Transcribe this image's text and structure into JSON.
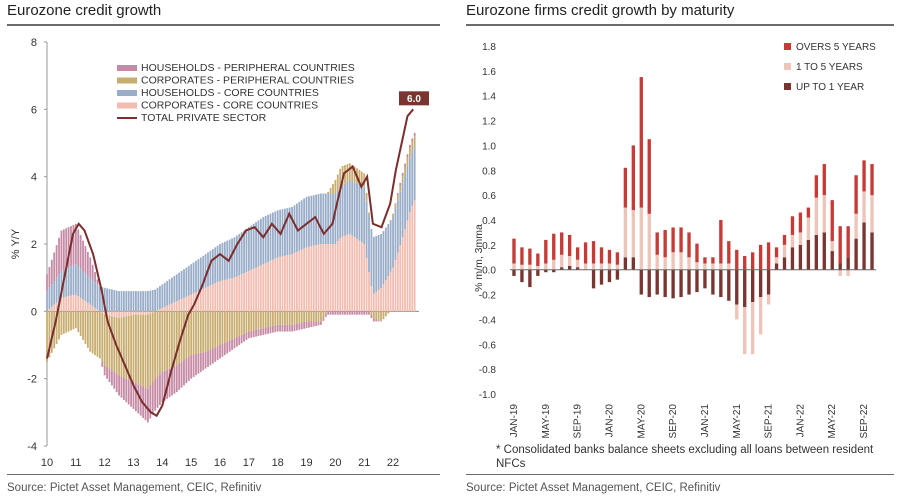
{
  "left_panel": {
    "title": "Eurozone credit growth",
    "source": "Source: Pictet Asset Management, CEIC, Refinitiv"
  },
  "right_panel": {
    "title": "Eurozone firms credit growth by maturity",
    "source": "Source: Pictet Asset Management, CEIC, Refinitiv",
    "note": "* Consolidated  banks balance sheets  excluding  all loans between resident NFCs"
  },
  "chart_data": [
    {
      "type": "bar",
      "stacked": true,
      "title": "Eurozone credit growth",
      "ylabel": "% Y/Y",
      "xlabel": "",
      "ylim": [
        -4,
        8
      ],
      "yticks": [
        -4,
        -2,
        0,
        2,
        4,
        6,
        8
      ],
      "xlim": [
        2010,
        2022.9
      ],
      "xticks": [
        "10",
        "11",
        "12",
        "13",
        "14",
        "15",
        "16",
        "17",
        "18",
        "19",
        "20",
        "21",
        "22"
      ],
      "legend_position": "top-center",
      "end_label": "6.0",
      "anchors_x": [
        2010,
        2010.5,
        2011,
        2011.5,
        2012,
        2012.5,
        2013,
        2013.5,
        2014,
        2014.5,
        2015,
        2015.5,
        2016,
        2016.5,
        2017,
        2017.5,
        2018,
        2018.5,
        2019,
        2019.5,
        2020,
        2020.2,
        2020.5,
        2021,
        2021.3,
        2021.6,
        2022,
        2022.3,
        2022.6,
        2022.75
      ],
      "series": [
        {
          "name": "HOUSEHOLDS - PERIPHERAL COUNTRIES",
          "color": "#c58aa5",
          "values": [
            0.5,
            1.2,
            1.2,
            0.6,
            -0.3,
            -0.6,
            -0.8,
            -1.0,
            -0.9,
            -0.8,
            -0.7,
            -0.5,
            -0.4,
            -0.3,
            -0.2,
            -0.2,
            -0.2,
            -0.2,
            -0.2,
            -0.1,
            -0.1,
            -0.1,
            -0.1,
            -0.1,
            -0.1,
            0.0,
            0.0,
            0.1,
            0.1,
            0.1
          ]
        },
        {
          "name": "CORPORATES - PERIPHERAL COUNTRIES",
          "color": "#c8ad70",
          "values": [
            -1.5,
            -0.7,
            -0.5,
            -1.2,
            -1.5,
            -1.7,
            -2.0,
            -2.2,
            -1.8,
            -1.6,
            -1.3,
            -1.2,
            -1.0,
            -0.8,
            -0.6,
            -0.5,
            -0.4,
            -0.4,
            -0.3,
            -0.3,
            0.4,
            0.6,
            0.5,
            0.4,
            -0.2,
            -0.3,
            0.1,
            0.2,
            0.3,
            0.3
          ]
        },
        {
          "name": "HOUSEHOLDS - CORE COUNTRIES",
          "color": "#99adc9",
          "values": [
            0.6,
            0.8,
            0.9,
            0.8,
            0.7,
            0.6,
            0.6,
            0.6,
            0.7,
            0.8,
            0.9,
            1.0,
            1.1,
            1.2,
            1.3,
            1.4,
            1.4,
            1.4,
            1.5,
            1.5,
            1.5,
            1.5,
            1.6,
            1.7,
            1.7,
            1.6,
            1.5,
            1.6,
            1.6,
            1.6
          ]
        },
        {
          "name": "CORPORATES - CORE COUNTRIES",
          "color": "#f2bdb0",
          "values": [
            0.0,
            0.4,
            0.5,
            0.2,
            -0.1,
            -0.2,
            -0.1,
            -0.1,
            0.1,
            0.3,
            0.5,
            0.7,
            0.9,
            1.0,
            1.2,
            1.4,
            1.6,
            1.7,
            1.9,
            2.0,
            2.0,
            2.2,
            2.3,
            2.0,
            0.5,
            0.7,
            1.3,
            2.1,
            3.0,
            3.3
          ]
        }
      ],
      "line": {
        "name": "TOTAL PRIVATE SECTOR",
        "color": "#7a2e2e",
        "x": [
          2010,
          2010.3,
          2010.6,
          2010.9,
          2011.1,
          2011.3,
          2011.6,
          2011.9,
          2012.1,
          2012.4,
          2012.7,
          2013.0,
          2013.3,
          2013.6,
          2013.8,
          2014.0,
          2014.3,
          2014.6,
          2014.9,
          2015.1,
          2015.4,
          2015.7,
          2016.0,
          2016.3,
          2016.6,
          2016.9,
          2017.2,
          2017.5,
          2017.8,
          2018.1,
          2018.4,
          2018.7,
          2019.0,
          2019.3,
          2019.6,
          2019.9,
          2020.0,
          2020.3,
          2020.6,
          2020.9,
          2021.1,
          2021.3,
          2021.6,
          2021.9,
          2022.1,
          2022.3,
          2022.5,
          2022.7
        ],
        "y": [
          -1.4,
          -0.3,
          1.0,
          2.3,
          2.6,
          2.4,
          1.7,
          0.6,
          -0.3,
          -1.0,
          -1.6,
          -2.2,
          -2.7,
          -3.0,
          -3.1,
          -2.8,
          -1.8,
          -0.9,
          -0.1,
          0.2,
          0.8,
          1.5,
          1.7,
          1.5,
          2.0,
          2.4,
          2.5,
          2.2,
          2.6,
          2.3,
          2.9,
          2.4,
          2.6,
          2.8,
          2.3,
          2.6,
          3.0,
          4.1,
          4.3,
          3.7,
          4.0,
          2.6,
          2.5,
          3.2,
          4.2,
          5.0,
          5.8,
          6.0
        ]
      }
    },
    {
      "type": "bar",
      "stacked": true,
      "title": "Eurozone firms credit growth by maturity",
      "ylabel": "% m/m, 3mma",
      "xlabel": "",
      "ylim": [
        -1.0,
        1.8
      ],
      "yticks": [
        "-1.0",
        "-0.8",
        "-0.6",
        "-0.4",
        "-0.2",
        "0.0",
        "0.2",
        "0.4",
        "0.6",
        "0.8",
        "1.0",
        "1.2",
        "1.4",
        "1.6",
        "1.8"
      ],
      "legend_position": "top-right",
      "categories": [
        "JAN-19",
        "FEB-19",
        "MAR-19",
        "APR-19",
        "MAY-19",
        "JUN-19",
        "JUL-19",
        "AUG-19",
        "SEP-19",
        "OCT-19",
        "NOV-19",
        "DEC-19",
        "JAN-20",
        "FEB-20",
        "MAR-20",
        "APR-20",
        "MAY-20",
        "JUN-20",
        "JUL-20",
        "AUG-20",
        "SEP-20",
        "OCT-20",
        "NOV-20",
        "DEC-20",
        "JAN-21",
        "FEB-21",
        "MAR-21",
        "APR-21",
        "MAY-21",
        "JUN-21",
        "JUL-21",
        "AUG-21",
        "SEP-21",
        "OCT-21",
        "NOV-21",
        "DEC-21",
        "JAN-22",
        "FEB-22",
        "MAR-22",
        "APR-22",
        "MAY-22",
        "JUN-22",
        "JUL-22",
        "AUG-22",
        "SEP-22",
        "OCT-22"
      ],
      "xtick_labels": [
        "JAN-19",
        "MAY-19",
        "SEP-19",
        "JAN-20",
        "MAY-20",
        "SEP-20",
        "JAN-21",
        "MAY-21",
        "SEP-21",
        "JAN-22",
        "MAY-22",
        "SEP-22"
      ],
      "series": [
        {
          "name": "UP TO 1 YEAR",
          "color": "#7a3530",
          "values": [
            -0.05,
            -0.1,
            -0.14,
            -0.05,
            -0.02,
            -0.02,
            0.02,
            0.03,
            0.02,
            0.0,
            -0.15,
            -0.12,
            -0.1,
            -0.08,
            0.1,
            0.1,
            -0.2,
            -0.22,
            -0.2,
            -0.22,
            -0.23,
            -0.22,
            -0.2,
            -0.18,
            -0.15,
            -0.2,
            -0.22,
            -0.25,
            -0.28,
            -0.3,
            -0.26,
            -0.22,
            -0.2,
            0.05,
            0.1,
            0.18,
            0.2,
            0.24,
            0.28,
            0.3,
            0.15,
            0.05,
            0.1,
            0.25,
            0.38,
            0.3
          ]
        },
        {
          "name": "1 TO 5 YEARS",
          "color": "#efc4b8",
          "values": [
            0.05,
            0.04,
            0.04,
            0.03,
            0.05,
            0.08,
            0.1,
            0.08,
            0.06,
            0.05,
            0.05,
            0.05,
            0.05,
            0.04,
            0.4,
            0.38,
            0.5,
            0.45,
            0.12,
            0.1,
            0.14,
            0.14,
            0.1,
            0.06,
            0.05,
            0.05,
            0.05,
            0.05,
            -0.12,
            -0.38,
            -0.42,
            -0.3,
            -0.08,
            0.05,
            0.1,
            0.1,
            0.1,
            0.18,
            0.3,
            0.3,
            0.08,
            -0.05,
            -0.05,
            0.2,
            0.25,
            0.3
          ]
        },
        {
          "name": "OVERS 5 YEARS",
          "color": "#c73a36",
          "values": [
            0.2,
            0.14,
            0.13,
            0.1,
            0.19,
            0.21,
            0.18,
            0.17,
            0.1,
            0.17,
            0.18,
            0.13,
            0.11,
            0.1,
            0.32,
            0.52,
            1.05,
            0.6,
            0.18,
            0.22,
            0.2,
            0.2,
            0.2,
            0.15,
            0.05,
            0.05,
            0.35,
            0.18,
            0.16,
            0.11,
            0.14,
            0.2,
            0.22,
            0.08,
            0.08,
            0.15,
            0.16,
            0.08,
            0.18,
            0.25,
            0.33,
            0.3,
            0.25,
            0.31,
            0.25,
            0.25
          ]
        }
      ]
    }
  ]
}
